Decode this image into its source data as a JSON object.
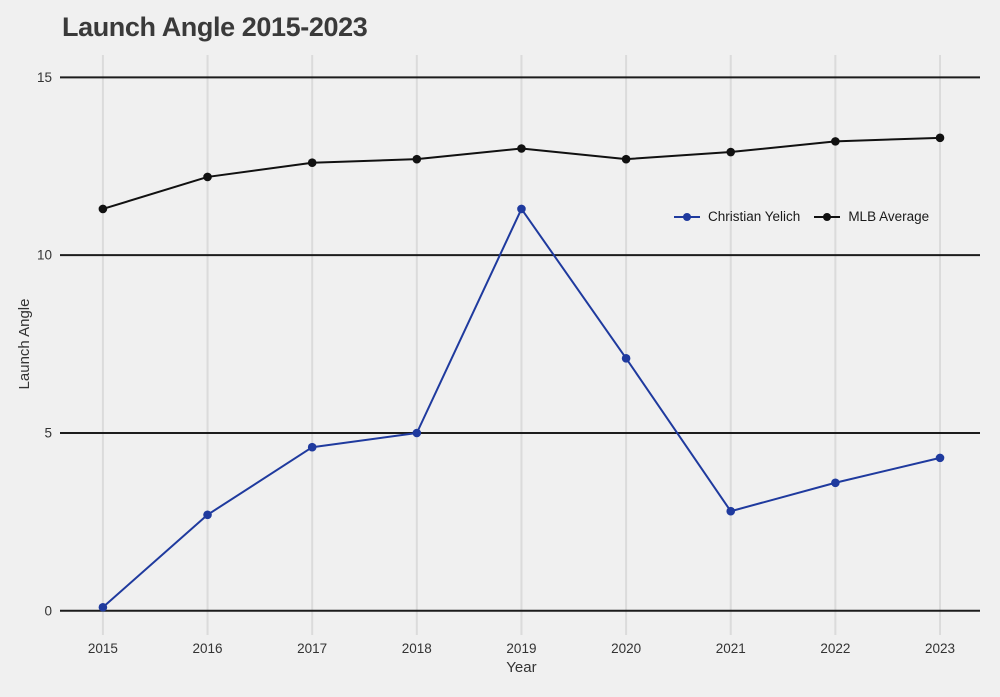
{
  "chart_data": {
    "type": "line",
    "title": "Launch Angle 2015-2023",
    "xlabel": "Year",
    "ylabel": "Launch Angle",
    "categories": [
      "2015",
      "2016",
      "2017",
      "2018",
      "2019",
      "2020",
      "2021",
      "2022",
      "2023"
    ],
    "series": [
      {
        "name": "Christian Yelich",
        "color": "#1F3A9E",
        "values": [
          0.1,
          2.7,
          4.6,
          5.0,
          11.3,
          7.1,
          2.8,
          3.6,
          4.3
        ]
      },
      {
        "name": "MLB Average",
        "color": "#111111",
        "values": [
          11.3,
          12.2,
          12.6,
          12.7,
          13.0,
          12.7,
          12.9,
          13.2,
          13.3
        ]
      }
    ],
    "ylim": [
      0,
      15
    ],
    "y_ticks": [
      0,
      5,
      10,
      15
    ],
    "grid": {
      "horizontal": "black-major-lines",
      "vertical": "light-gray-lines"
    },
    "legend_position": "inside-upper-right"
  },
  "colors": {
    "background": "#F0F0F0",
    "grid_vertical": "#DBDBDB",
    "grid_horizontal": "#1C1C1C",
    "tick_label": "#333333",
    "axis_label": "#333333",
    "title": "#3A3A3A"
  }
}
